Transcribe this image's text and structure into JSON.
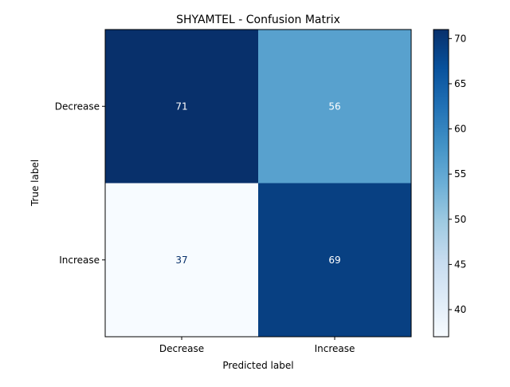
{
  "chart_data": {
    "type": "heatmap",
    "title": "SHYAMTEL - Confusion Matrix",
    "xlabel": "Predicted label",
    "ylabel": "True label",
    "x_categories": [
      "Decrease",
      "Increase"
    ],
    "y_categories": [
      "Decrease",
      "Increase"
    ],
    "values": [
      [
        71,
        56
      ],
      [
        37,
        69
      ]
    ],
    "colormap": "Blues",
    "colorbar": {
      "range": [
        37,
        71
      ],
      "ticks": [
        40,
        45,
        50,
        55,
        60,
        65,
        70
      ],
      "tick_labels": [
        "40",
        "45",
        "50",
        "55",
        "60",
        "65",
        "70"
      ]
    },
    "grid": false
  }
}
